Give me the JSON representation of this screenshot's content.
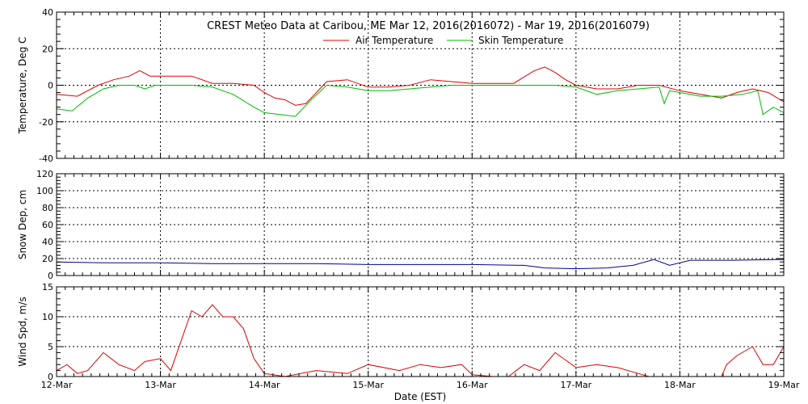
{
  "chart_data": {
    "type": "line",
    "title": "CREST Meteo Data at Caribou, ME   Mar 12, 2016(2016072) - Mar 19, 2016(2016079)",
    "xlabel": "Date (EST)",
    "x_tick_labels": [
      "12-Mar",
      "13-Mar",
      "14-Mar",
      "15-Mar",
      "16-Mar",
      "17-Mar",
      "18-Mar",
      "19-Mar"
    ],
    "xlim": [
      0,
      7
    ],
    "legend_position": "top-center",
    "grid": true,
    "panels": [
      {
        "ylabel": "Temperature, Deg C",
        "ylim": [
          -40,
          40
        ],
        "y_ticks": [
          -40,
          -20,
          0,
          20,
          40
        ],
        "series": [
          {
            "name": "Air Temperature",
            "color": "#dd0000",
            "x": [
              0,
              0.2,
              0.4,
              0.55,
              0.7,
              0.8,
              0.9,
              1.1,
              1.3,
              1.5,
              1.7,
              1.9,
              2.0,
              2.1,
              2.2,
              2.3,
              2.4,
              2.6,
              2.8,
              3.0,
              3.2,
              3.4,
              3.6,
              3.8,
              4.0,
              4.2,
              4.4,
              4.6,
              4.7,
              4.8,
              4.9,
              5.0,
              5.2,
              5.4,
              5.6,
              5.8,
              6.0,
              6.2,
              6.4,
              6.55,
              6.7,
              6.85,
              7.0
            ],
            "y": [
              -5,
              -6,
              0,
              3,
              5,
              8,
              5,
              5,
              5,
              1,
              1,
              0,
              -4,
              -7,
              -8,
              -11,
              -10,
              2,
              3,
              -1,
              -1,
              0,
              3,
              2,
              1,
              1,
              1,
              8,
              10,
              7,
              3,
              0,
              -2,
              -2,
              0,
              0,
              -3,
              -5,
              -7,
              -4,
              -2,
              -4,
              -9
            ]
          },
          {
            "name": "Skin Temperature",
            "color": "#00bb00",
            "x": [
              0,
              0.15,
              0.3,
              0.45,
              0.6,
              0.75,
              0.85,
              0.95,
              1.1,
              1.3,
              1.5,
              1.7,
              1.9,
              2.0,
              2.15,
              2.3,
              2.45,
              2.6,
              2.8,
              3.0,
              3.2,
              3.4,
              3.6,
              3.8,
              4.0,
              4.2,
              4.4,
              4.6,
              4.8,
              5.0,
              5.2,
              5.4,
              5.6,
              5.8,
              5.85,
              5.9,
              6.0,
              6.2,
              6.4,
              6.6,
              6.75,
              6.8,
              6.9,
              7.0
            ],
            "y": [
              -13,
              -14,
              -7,
              -2,
              0,
              0,
              -2,
              0,
              0,
              0,
              -1,
              -5,
              -12,
              -15,
              -16,
              -17,
              -8,
              0,
              -1,
              -3,
              -3,
              -2,
              -1,
              0,
              0,
              0,
              0,
              0,
              0,
              -1,
              -5,
              -3,
              -2,
              -1,
              -10,
              -3,
              -4,
              -6,
              -6,
              -5,
              -3,
              -16,
              -12,
              -15
            ]
          }
        ]
      },
      {
        "ylabel": "Snow Dep, cm",
        "ylim": [
          0,
          120
        ],
        "y_ticks": [
          0,
          20,
          40,
          60,
          80,
          100,
          120
        ],
        "series": [
          {
            "name": "Snow Depth",
            "color": "#000099",
            "x": [
              0,
              0.5,
              1.0,
              1.5,
              2.0,
              2.5,
              3.0,
              3.5,
              4.0,
              4.5,
              4.7,
              5.0,
              5.3,
              5.55,
              5.75,
              5.9,
              6.1,
              6.5,
              7.0
            ],
            "y": [
              16,
              15,
              15,
              14,
              14,
              14,
              13,
              13,
              13,
              12,
              9,
              8,
              9,
              12,
              19,
              12,
              18,
              18,
              19
            ]
          }
        ]
      },
      {
        "ylabel": "Wind Spd, m/s",
        "ylim": [
          0,
          15
        ],
        "y_ticks": [
          0,
          5,
          10,
          15
        ],
        "series": [
          {
            "name": "Wind Speed",
            "color": "#dd0000",
            "x": [
              0,
              0.1,
              0.2,
              0.3,
              0.45,
              0.6,
              0.75,
              0.85,
              1.0,
              1.1,
              1.2,
              1.3,
              1.4,
              1.5,
              1.6,
              1.7,
              1.8,
              1.9,
              2.0,
              2.2,
              2.5,
              2.8,
              3.0,
              3.3,
              3.5,
              3.7,
              3.9,
              4.0,
              4.2,
              4.35,
              4.5,
              4.65,
              4.8,
              5.0,
              5.2,
              5.4,
              5.6,
              5.7,
              5.85,
              6.0,
              6.2,
              6.4,
              6.45,
              6.55,
              6.7,
              6.8,
              6.9,
              7.0
            ],
            "y": [
              1,
              2,
              0.5,
              1,
              4,
              2,
              1,
              2.5,
              3,
              1,
              6,
              11,
              10,
              12,
              10,
              10,
              8,
              3,
              0.5,
              0,
              1,
              0.5,
              2,
              1,
              2,
              1.5,
              2,
              0.3,
              0,
              0,
              2,
              1,
              4,
              1.5,
              2,
              1.5,
              0.5,
              0,
              0,
              0,
              0,
              0,
              2,
              3.5,
              5,
              2,
              2,
              5
            ]
          }
        ]
      }
    ]
  }
}
